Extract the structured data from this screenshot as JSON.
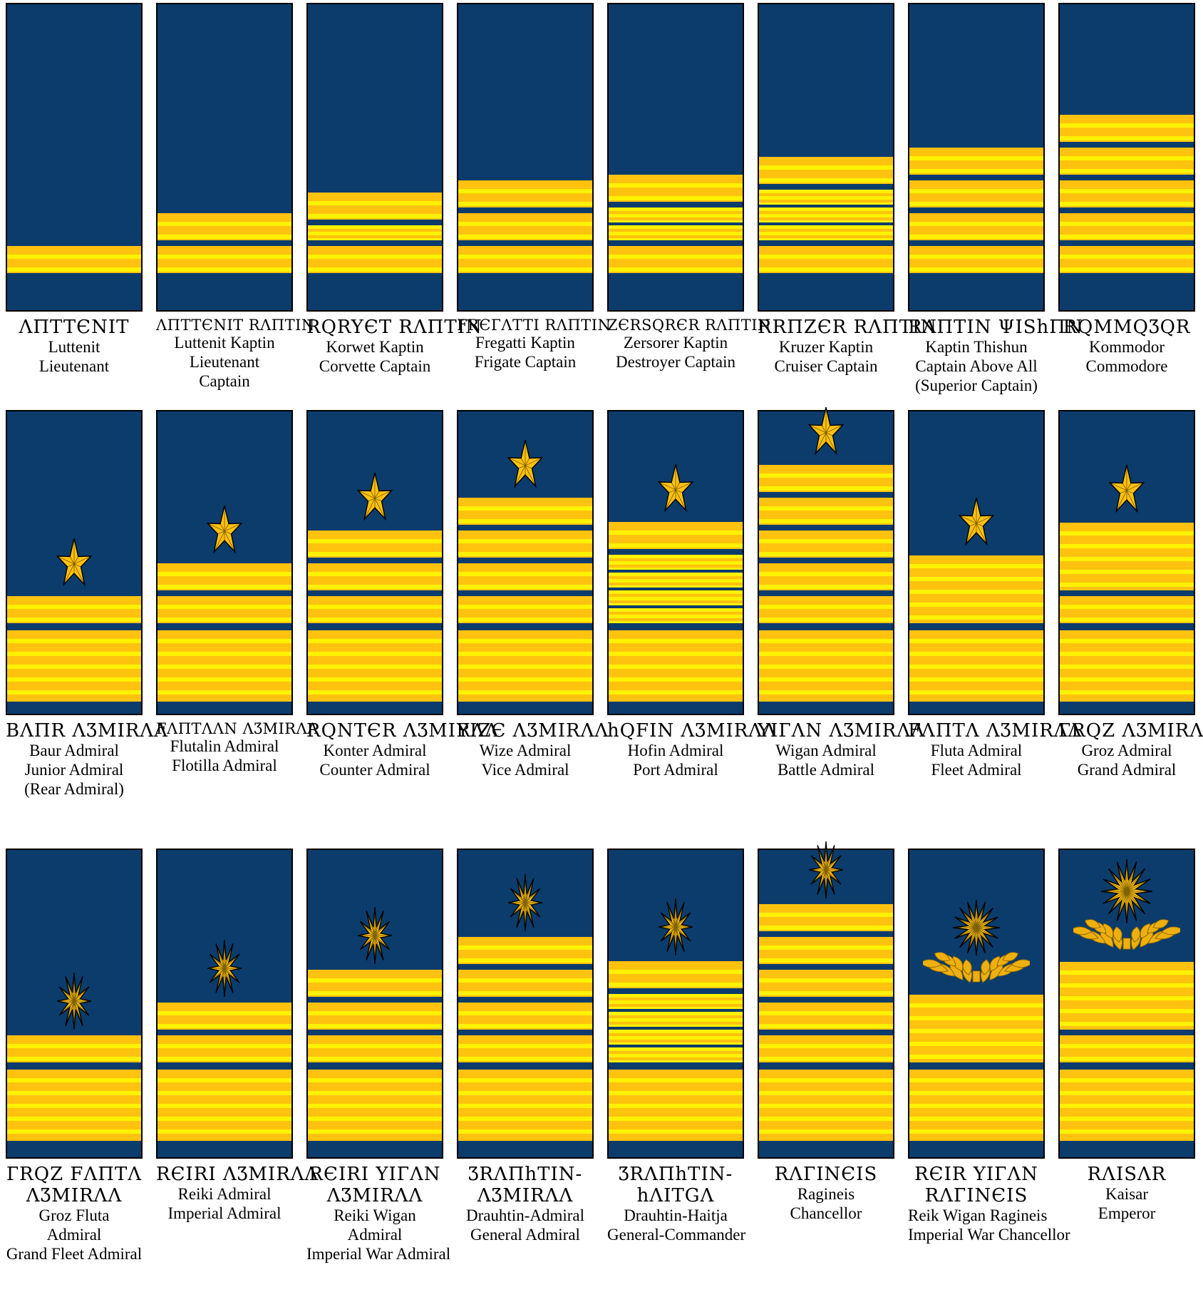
{
  "palette": {
    "navy": "#0b3c6c",
    "gold": "#ffc20e",
    "yellow": "#fff200",
    "emblem_gold": "#ffc20e",
    "wreath_gold": "#eeb00f",
    "outline": "#000000",
    "background": "#ffffff"
  },
  "rows": [
    {
      "name": "captain-ranks",
      "insignia": [
        {
          "script": [
            "ΛΠTTЄNIT"
          ],
          "name": [
            "Luttenit"
          ],
          "translation": [
            "Lieutenant"
          ],
          "emblem": "none",
          "bands": [
            "thick"
          ],
          "base": false
        },
        {
          "script": [
            "ΛΠTTЄNIT RΛΠTIN"
          ],
          "name": [
            "Luttenit Kaptin"
          ],
          "translation": [
            "Lieutenant",
            "Captain"
          ],
          "emblem": "none",
          "bands": [
            "thick",
            "thick"
          ],
          "base": false
        },
        {
          "script": [
            "RQRYЄT RΛΠTIN"
          ],
          "name": [
            "Korwet Kaptin"
          ],
          "translation": [
            "Corvette Captain"
          ],
          "emblem": "none",
          "bands": [
            "thick",
            "thin",
            "thick"
          ],
          "base": false
        },
        {
          "script": [
            "FRЄГΛTTI RΛΠTIN"
          ],
          "name": [
            "Fregatti Kaptin"
          ],
          "translation": [
            "Frigate Captain"
          ],
          "emblem": "none",
          "bands": [
            "thick",
            "thick",
            "thick"
          ],
          "base": false
        },
        {
          "script": [
            "ZЄRSQRЄR RΛΠTIN"
          ],
          "name": [
            "Zersorer Kaptin"
          ],
          "translation": [
            "Destroyer Captain"
          ],
          "emblem": "none",
          "bands": [
            "thick",
            "thin",
            "thin",
            "thick"
          ],
          "base": false
        },
        {
          "script": [
            "RRΠZЄR RΛΠTIN"
          ],
          "name": [
            "Kruzer Kaptin"
          ],
          "translation": [
            "Cruiser Captain"
          ],
          "emblem": "none",
          "bands": [
            "thick",
            "thin",
            "thin",
            "thin",
            "thick"
          ],
          "base": false
        },
        {
          "script": [
            "RΛΠTIN ΨIShΠN"
          ],
          "name": [
            "Kaptin Thishun"
          ],
          "translation": [
            "Captain Above All",
            "(Superior Captain)"
          ],
          "emblem": "none",
          "bands": [
            "thick",
            "thick",
            "thick",
            "thick"
          ],
          "base": false
        },
        {
          "script": [
            "RQMMQƷQR"
          ],
          "name": [
            "Kommodor"
          ],
          "translation": [
            "Commodore"
          ],
          "emblem": "none",
          "bands": [
            "thick",
            "thick",
            "thick",
            "thick",
            "thick"
          ],
          "base": false
        }
      ]
    },
    {
      "name": "admiral-ranks",
      "insignia": [
        {
          "script": [
            "BΛΠR ΛƷMIRΛΛ"
          ],
          "name": [
            "Baur Admiral"
          ],
          "translation": [
            "Junior Admiral",
            "(Rear Admiral)"
          ],
          "emblem": "five-point-star",
          "bands": [
            "thick"
          ],
          "base": true
        },
        {
          "script": [
            "FΛΠTΛΛN ΛƷMIRΛΛ"
          ],
          "name": [
            "Flutalin Admiral"
          ],
          "translation": [
            "Flotilla Admiral"
          ],
          "emblem": "five-point-star",
          "bands": [
            "thick",
            "thick"
          ],
          "base": true
        },
        {
          "script": [
            "RQNTЄR ΛƷMIRΛΛ"
          ],
          "name": [
            "Konter Admiral"
          ],
          "translation": [
            "Counter Admiral"
          ],
          "emblem": "five-point-star",
          "bands": [
            "thick",
            "thick",
            "thick"
          ],
          "base": true
        },
        {
          "script": [
            "YIZЄ ΛƷMIRΛΛ"
          ],
          "name": [
            "Wize Admiral"
          ],
          "translation": [
            "Vice Admiral"
          ],
          "emblem": "five-point-star",
          "bands": [
            "thick",
            "thick",
            "thick",
            "thick"
          ],
          "base": true
        },
        {
          "script": [
            "hQFIN ΛƷMIRΛΛ"
          ],
          "name": [
            "Hofin Admiral"
          ],
          "translation": [
            "Port Admiral"
          ],
          "emblem": "five-point-star",
          "bands": [
            "thick",
            "thin",
            "thin",
            "thin",
            "thin"
          ],
          "base": true
        },
        {
          "script": [
            "YIГΛN ΛƷMIRΛΛ"
          ],
          "name": [
            "Wigan Admiral"
          ],
          "translation": [
            "Battle Admiral"
          ],
          "emblem": "five-point-star",
          "bands": [
            "thick",
            "thick",
            "thick",
            "thick",
            "thick"
          ],
          "base": true
        },
        {
          "script": [
            "FΛΠTΛ ΛƷMIRΛΛ"
          ],
          "name": [
            "Fluta Admiral"
          ],
          "translation": [
            "Fleet Admiral"
          ],
          "emblem": "five-point-star",
          "bands": [
            "block"
          ],
          "base": true
        },
        {
          "script": [
            "ГRQZ ΛƷMIRΛΛ"
          ],
          "name": [
            "Groz Admiral"
          ],
          "translation": [
            "Grand Admiral"
          ],
          "emblem": "five-point-star",
          "bands": [
            "block",
            "thick"
          ],
          "base": true
        }
      ]
    },
    {
      "name": "high-command-ranks",
      "insignia": [
        {
          "script": [
            "ГRQZ FΛΠTΛ",
            "ΛƷMIRΛΛ"
          ],
          "name": [
            "Groz Fluta",
            "Admiral"
          ],
          "translation": [
            "Grand Fleet Admiral"
          ],
          "emblem": "twelve-point-sunburst",
          "bands": [
            "thick"
          ],
          "base": true
        },
        {
          "script": [
            "RЄIRI ΛƷMIRΛΛ"
          ],
          "name": [
            "Reiki Admiral"
          ],
          "translation": [
            "Imperial Admiral"
          ],
          "emblem": "twelve-point-sunburst",
          "bands": [
            "thick",
            "thick"
          ],
          "base": true
        },
        {
          "script": [
            "RЄIRI YIГΛN",
            "ΛƷMIRΛΛ"
          ],
          "name": [
            "Reiki Wigan",
            "Admiral"
          ],
          "translation": [
            "Imperial War Admiral"
          ],
          "emblem": "twelve-point-sunburst",
          "bands": [
            "thick",
            "thick",
            "thick"
          ],
          "base": true
        },
        {
          "script": [
            "ƷRΛΠhTIN-",
            "ΛƷMIRΛΛ"
          ],
          "name": [
            "Drauhtin-Admiral"
          ],
          "translation": [
            "General Admiral"
          ],
          "emblem": "twelve-point-sunburst",
          "bands": [
            "thick",
            "thick",
            "thick",
            "thick"
          ],
          "base": true
        },
        {
          "script": [
            "ƷRΛΠhTIN-",
            "hΛITGΛ"
          ],
          "name": [
            "Drauhtin-Haitja"
          ],
          "translation": [
            "General-Commander"
          ],
          "emblem": "twelve-point-sunburst",
          "bands": [
            "thick",
            "thin",
            "thin",
            "thin",
            "thin"
          ],
          "base": true
        },
        {
          "script": [
            "RΛГINЄIS"
          ],
          "name": [
            "Ragineis"
          ],
          "translation": [
            "Chancellor"
          ],
          "emblem": "twelve-point-sunburst",
          "bands": [
            "thick",
            "thick",
            "thick",
            "thick",
            "thick"
          ],
          "base": true
        },
        {
          "script": [
            "RЄIR YIГΛN",
            "RΛГINЄIS"
          ],
          "name": [
            "Reik Wigan Ragineis"
          ],
          "translation": [
            "Imperial War Chancellor"
          ],
          "emblem": "wreath-sunburst",
          "bands": [
            "block"
          ],
          "base": true
        },
        {
          "script": [
            "RΛISΛR"
          ],
          "name": [
            "Kaisar"
          ],
          "translation": [
            "Emperor"
          ],
          "emblem": "wreath-sunburst-large",
          "bands": [
            "block",
            "thick"
          ],
          "base": true
        }
      ]
    }
  ]
}
